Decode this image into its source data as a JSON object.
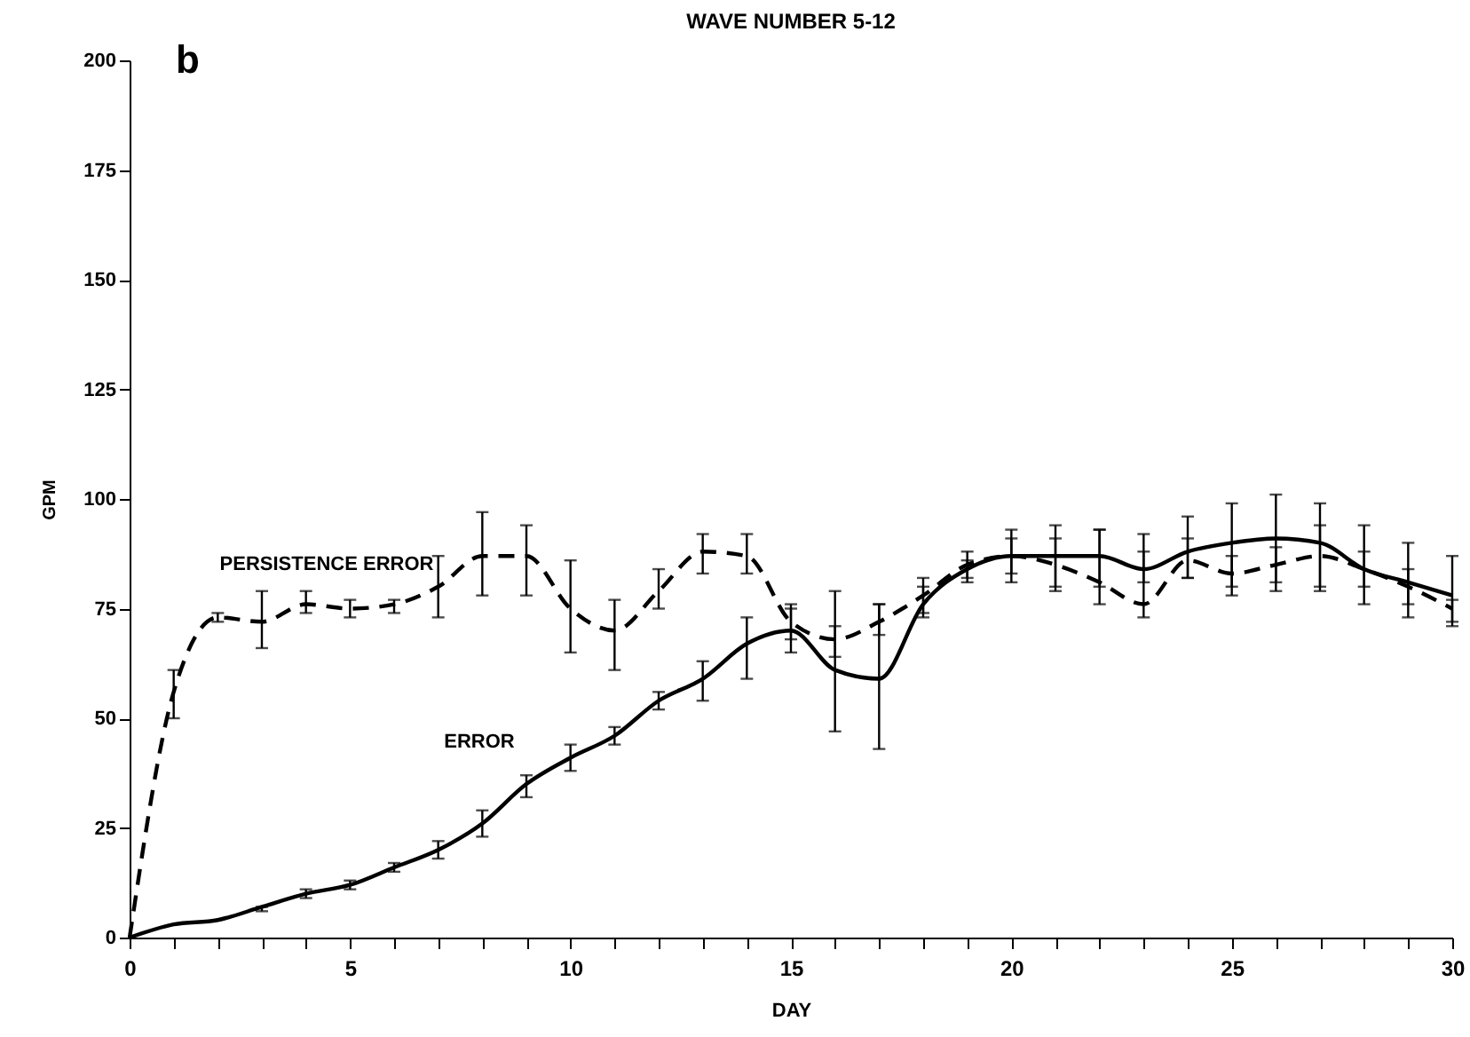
{
  "chart_data": {
    "type": "line",
    "title": "WAVE NUMBER 5-12",
    "xlabel": "DAY",
    "ylabel": "GPM",
    "annotations": [
      "b"
    ],
    "x": [
      0,
      1,
      2,
      3,
      4,
      5,
      6,
      7,
      8,
      9,
      10,
      11,
      12,
      13,
      14,
      15,
      16,
      17,
      18,
      19,
      20,
      21,
      22,
      23,
      24,
      25,
      26,
      27,
      28,
      29,
      30
    ],
    "xlim": [
      0,
      30
    ],
    "ylim": [
      0,
      200
    ],
    "xticks": [
      0,
      {
        "value": 1,
        "label": null
      },
      {
        "value": 2,
        "label": null
      },
      {
        "value": 3,
        "label": null
      },
      {
        "value": 4,
        "label": null
      },
      5,
      {
        "value": 6,
        "label": null
      },
      {
        "value": 7,
        "label": null
      },
      {
        "value": 8,
        "label": null
      },
      {
        "value": 9,
        "label": null
      },
      10,
      {
        "value": 11,
        "label": null
      },
      {
        "value": 12,
        "label": null
      },
      {
        "value": 13,
        "label": null
      },
      {
        "value": 14,
        "label": null
      },
      15,
      {
        "value": 16,
        "label": null
      },
      {
        "value": 17,
        "label": null
      },
      {
        "value": 18,
        "label": null
      },
      {
        "value": 19,
        "label": null
      },
      20,
      {
        "value": 21,
        "label": null
      },
      {
        "value": 22,
        "label": null
      },
      {
        "value": 23,
        "label": null
      },
      {
        "value": 24,
        "label": null
      },
      25,
      {
        "value": 26,
        "label": null
      },
      {
        "value": 27,
        "label": null
      },
      {
        "value": 28,
        "label": null
      },
      {
        "value": 29,
        "label": null
      },
      30
    ],
    "yticks": [
      0,
      25,
      50,
      75,
      100,
      125,
      150,
      175,
      200
    ],
    "grid": false,
    "marker": "none",
    "series": [
      {
        "name": "PERSISTENCE ERROR",
        "color": "#000000",
        "line_style": "dashed",
        "values": [
          0,
          56,
          73,
          72,
          76,
          75,
          76,
          80,
          87,
          87,
          75,
          70,
          79,
          88,
          87,
          72,
          68,
          72,
          78,
          85,
          87,
          85,
          81,
          76,
          86,
          83,
          85,
          87,
          84,
          80,
          75
        ],
        "errors": [
          null,
          [
            50,
            61
          ],
          [
            72,
            74
          ],
          [
            66,
            79
          ],
          [
            74,
            79
          ],
          [
            73,
            77
          ],
          [
            74,
            77
          ],
          [
            73,
            87
          ],
          [
            78,
            97
          ],
          [
            78,
            94
          ],
          [
            65,
            86
          ],
          [
            61,
            77
          ],
          [
            75,
            84
          ],
          [
            83,
            92
          ],
          [
            83,
            92
          ],
          [
            68,
            76
          ],
          [
            64,
            71
          ],
          [
            69,
            76
          ],
          [
            74,
            82
          ],
          [
            81,
            88
          ],
          [
            81,
            93
          ],
          [
            79,
            91
          ],
          [
            76,
            93
          ],
          [
            73,
            92
          ],
          [
            82,
            91
          ],
          [
            80,
            87
          ],
          [
            81,
            89
          ],
          [
            80,
            94
          ],
          [
            80,
            88
          ],
          [
            76,
            84
          ],
          [
            72,
            77
          ]
        ]
      },
      {
        "name": "ERROR",
        "color": "#000000",
        "line_style": "solid",
        "values": [
          0,
          3,
          4,
          7,
          10,
          12,
          16,
          20,
          26,
          35,
          41,
          46,
          54,
          59,
          67,
          70,
          61,
          59,
          76,
          84,
          87,
          87,
          87,
          84,
          88,
          90,
          91,
          90,
          84,
          81,
          78
        ],
        "errors": [
          null,
          null,
          null,
          [
            6,
            7
          ],
          [
            9,
            11
          ],
          [
            11,
            13
          ],
          [
            15,
            17
          ],
          [
            18,
            22
          ],
          [
            23,
            29
          ],
          [
            32,
            37
          ],
          [
            38,
            44
          ],
          [
            44,
            48
          ],
          [
            52,
            56
          ],
          [
            54,
            63
          ],
          [
            59,
            73
          ],
          [
            65,
            75
          ],
          [
            47,
            79
          ],
          [
            43,
            76
          ],
          [
            73,
            80
          ],
          [
            82,
            86
          ],
          [
            83,
            91
          ],
          [
            80,
            94
          ],
          [
            80,
            93
          ],
          [
            81,
            88
          ],
          [
            82,
            96
          ],
          [
            78,
            99
          ],
          [
            79,
            101
          ],
          [
            79,
            99
          ],
          [
            76,
            94
          ],
          [
            73,
            90
          ],
          [
            71,
            87
          ]
        ]
      }
    ]
  }
}
